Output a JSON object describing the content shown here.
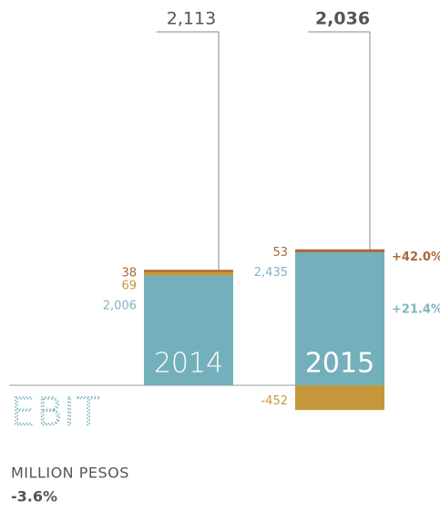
{
  "chart_data": {
    "type": "stacked_bar",
    "title": "EBIT",
    "subtitle": "MILLION PESOS",
    "annotation": "-3.6%",
    "categories": [
      "2014",
      "2015"
    ],
    "series": [
      {
        "color": "#74b0bb",
        "values": [
          2006,
          2435
        ],
        "value_labels": [
          "2,006",
          "2,435"
        ],
        "change_label": "+21.4%"
      },
      {
        "color": "#c4983a",
        "values": [
          69,
          -452
        ],
        "value_labels": [
          "69",
          "-452"
        ]
      },
      {
        "color": "#a8683a",
        "values": [
          38,
          53
        ],
        "value_labels": [
          "38",
          "53"
        ],
        "change_label": "+42.0%"
      }
    ],
    "totals": [
      2113,
      2036
    ],
    "total_labels": [
      "2,113",
      "2,036"
    ],
    "ylim": [
      -2300,
      7050
    ]
  }
}
